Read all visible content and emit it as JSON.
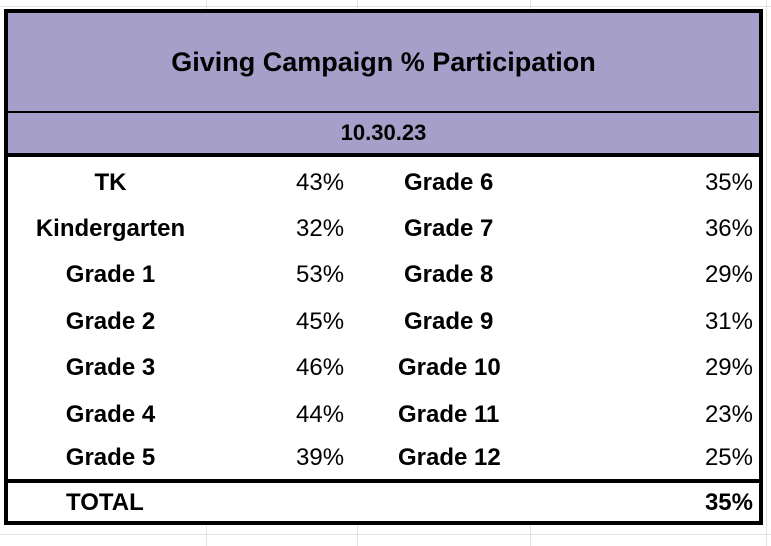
{
  "title": "Giving Campaign % Participation",
  "date": "10.30.23",
  "left_rows": [
    {
      "grade": "TK",
      "pct": "43%"
    },
    {
      "grade": "Kindergarten",
      "pct": "32%"
    },
    {
      "grade": "Grade 1",
      "pct": "53%"
    },
    {
      "grade": "Grade 2",
      "pct": "45%"
    },
    {
      "grade": "Grade 3",
      "pct": "46%"
    },
    {
      "grade": "Grade 4",
      "pct": "44%"
    },
    {
      "grade": "Grade 5",
      "pct": "39%"
    }
  ],
  "right_rows": [
    {
      "grade": "Grade 6",
      "pct": "35%"
    },
    {
      "grade": "Grade 7",
      "pct": "36%"
    },
    {
      "grade": "Grade 8",
      "pct": "29%"
    },
    {
      "grade": "Grade 9",
      "pct": "31%"
    },
    {
      "grade": "Grade 10",
      "pct": "29%"
    },
    {
      "grade": "Grade 11",
      "pct": "23%"
    },
    {
      "grade": "Grade 12",
      "pct": "25%"
    }
  ],
  "total": {
    "label": "TOTAL",
    "pct": "35%"
  },
  "colors": {
    "header_bg": "#a59fca",
    "border": "#000000"
  }
}
